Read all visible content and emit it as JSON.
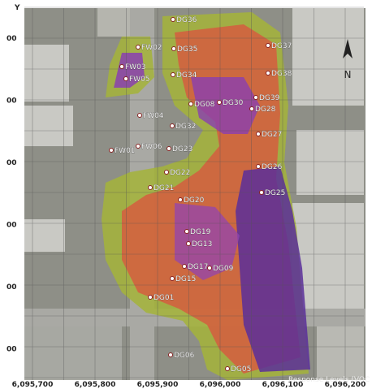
{
  "axes": {
    "y_title": "Y",
    "y_ticks": [
      "00",
      "00",
      "00",
      "00",
      "00",
      "00"
    ],
    "x_ticks": [
      "6,095,700",
      "6,095,800",
      "6,095,900",
      "6,096,000",
      "6,096,100",
      "6,096,200"
    ]
  },
  "north_label": "N",
  "legend_title": "Response Levels (VOC",
  "points": [
    {
      "label": "DG36"
    },
    {
      "label": "DG37"
    },
    {
      "label": "DG35"
    },
    {
      "label": "DG34"
    },
    {
      "label": "DG38"
    },
    {
      "label": "DG39"
    },
    {
      "label": "DG28"
    },
    {
      "label": "DG30"
    },
    {
      "label": "DG08"
    },
    {
      "label": "FW02"
    },
    {
      "label": "FW03"
    },
    {
      "label": "FW05"
    },
    {
      "label": "FW04"
    },
    {
      "label": "FW01"
    },
    {
      "label": "FW06"
    },
    {
      "label": "DG32"
    },
    {
      "label": "DG23"
    },
    {
      "label": "DG27"
    },
    {
      "label": "DG26"
    },
    {
      "label": "DG22"
    },
    {
      "label": "DG25"
    },
    {
      "label": "DG21"
    },
    {
      "label": "DG20"
    },
    {
      "label": "DG19"
    },
    {
      "label": "DG13"
    },
    {
      "label": "DG17"
    },
    {
      "label": "DG09"
    },
    {
      "label": "DG15"
    },
    {
      "label": "DG01"
    },
    {
      "label": "DG06"
    },
    {
      "label": "DG05"
    }
  ]
}
